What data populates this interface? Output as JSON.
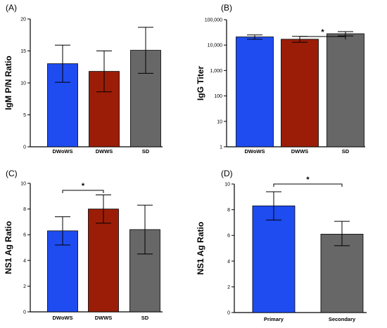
{
  "chart_data": [
    {
      "panel": "(A)",
      "type": "bar",
      "ylabel": "IgM P/N Ratio",
      "categories": [
        "DWoWS",
        "DWWS",
        "SD"
      ],
      "values": [
        13.0,
        11.8,
        15.1
      ],
      "error_low": [
        10.1,
        8.6,
        11.5
      ],
      "error_high": [
        15.9,
        15.0,
        18.7
      ],
      "colors": [
        "#1f4cf0",
        "#9b1d07",
        "#676767"
      ],
      "ylim": [
        0,
        20
      ],
      "yticks": [
        "0",
        "5",
        "10",
        "15",
        "20"
      ],
      "yscale": "linear",
      "significance": []
    },
    {
      "panel": "(B)",
      "type": "bar",
      "ylabel": "IgG Titer",
      "categories": [
        "DWoWS",
        "DWWS",
        "SD"
      ],
      "values": [
        21000,
        17000,
        28000
      ],
      "error_low": [
        17000,
        13000,
        23000
      ],
      "error_high": [
        25000,
        22000,
        34000
      ],
      "colors": [
        "#1f4cf0",
        "#9b1d07",
        "#676767"
      ],
      "ylim": [
        1,
        100000
      ],
      "yticks": [
        "1",
        "10",
        "100",
        "1000",
        "10000",
        "100000"
      ],
      "yscale": "log",
      "significance": [
        {
          "from": 1,
          "to": 2,
          "label": "*"
        }
      ]
    },
    {
      "panel": "(C)",
      "type": "bar",
      "ylabel": "NS1 Ag Ratio",
      "categories": [
        "DWoWS",
        "DWWS",
        "SD"
      ],
      "values": [
        6.3,
        8.0,
        6.4
      ],
      "error_low": [
        5.2,
        6.9,
        4.5
      ],
      "error_high": [
        7.4,
        9.1,
        8.3
      ],
      "colors": [
        "#1f4cf0",
        "#9b1d07",
        "#676767"
      ],
      "ylim": [
        0,
        10
      ],
      "yticks": [
        "0",
        "2",
        "4",
        "6",
        "8",
        "10"
      ],
      "yscale": "linear",
      "significance": [
        {
          "from": 0,
          "to": 1,
          "label": "*"
        }
      ]
    },
    {
      "panel": "(D)",
      "type": "bar",
      "ylabel": "NS1 Ag Ratio",
      "categories": [
        "Primary",
        "Secondary"
      ],
      "values": [
        8.3,
        6.1
      ],
      "error_low": [
        7.2,
        5.2
      ],
      "error_high": [
        9.4,
        7.1
      ],
      "colors": [
        "#1f4cf0",
        "#676767"
      ],
      "ylim": [
        0,
        10
      ],
      "yticks": [
        "0",
        "2",
        "4",
        "6",
        "8",
        "10"
      ],
      "yscale": "linear",
      "significance": [
        {
          "from": 0,
          "to": 1,
          "label": "*"
        }
      ]
    }
  ]
}
